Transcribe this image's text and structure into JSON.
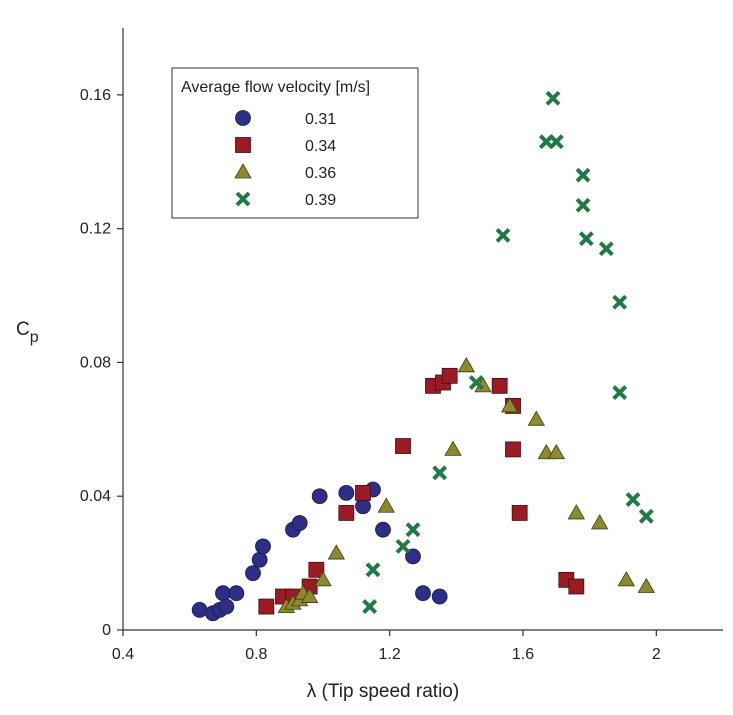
{
  "chart_data": {
    "type": "scatter",
    "title": "",
    "xlabel": "λ (Tip speed ratio)",
    "ylabel_main": "C",
    "ylabel_sub": "p",
    "xlim": [
      0.4,
      2.2
    ],
    "ylim": [
      0,
      0.18
    ],
    "x_ticks": [
      0.4,
      0.8,
      1.2,
      1.6,
      2.0
    ],
    "x_tick_labels": [
      "0.4",
      "0.8",
      "1.2",
      "1.6",
      "2"
    ],
    "y_ticks": [
      0,
      0.04,
      0.08,
      0.12,
      0.16
    ],
    "y_tick_labels": [
      "0",
      "0.04",
      "0.08",
      "0.12",
      "0.16"
    ],
    "grid": false,
    "legend": {
      "title": "Average flow velocity [m/s]",
      "placement": "top-left"
    },
    "series": [
      {
        "name": "0.31",
        "marker": "circle",
        "color": "#2d2f86",
        "points": [
          [
            0.63,
            0.006
          ],
          [
            0.67,
            0.005
          ],
          [
            0.69,
            0.006
          ],
          [
            0.7,
            0.011
          ],
          [
            0.71,
            0.007
          ],
          [
            0.74,
            0.011
          ],
          [
            0.79,
            0.017
          ],
          [
            0.81,
            0.021
          ],
          [
            0.82,
            0.025
          ],
          [
            0.91,
            0.03
          ],
          [
            0.93,
            0.032
          ],
          [
            0.99,
            0.04
          ],
          [
            1.07,
            0.041
          ],
          [
            1.12,
            0.037
          ],
          [
            1.15,
            0.042
          ],
          [
            1.18,
            0.03
          ],
          [
            1.27,
            0.022
          ],
          [
            1.3,
            0.011
          ],
          [
            1.35,
            0.01
          ]
        ]
      },
      {
        "name": "0.34",
        "marker": "square",
        "color": "#9b1b24",
        "points": [
          [
            0.83,
            0.007
          ],
          [
            0.88,
            0.01
          ],
          [
            0.91,
            0.01
          ],
          [
            0.96,
            0.013
          ],
          [
            0.98,
            0.018
          ],
          [
            1.07,
            0.035
          ],
          [
            1.12,
            0.041
          ],
          [
            1.24,
            0.055
          ],
          [
            1.33,
            0.073
          ],
          [
            1.36,
            0.074
          ],
          [
            1.38,
            0.076
          ],
          [
            1.53,
            0.073
          ],
          [
            1.57,
            0.067
          ],
          [
            1.57,
            0.054
          ],
          [
            1.59,
            0.035
          ],
          [
            1.73,
            0.015
          ],
          [
            1.76,
            0.013
          ]
        ]
      },
      {
        "name": "0.36",
        "marker": "triangle",
        "color": "#8b8a2e",
        "points": [
          [
            0.89,
            0.007
          ],
          [
            0.91,
            0.008
          ],
          [
            0.93,
            0.009
          ],
          [
            0.94,
            0.011
          ],
          [
            0.96,
            0.01
          ],
          [
            1.0,
            0.015
          ],
          [
            1.04,
            0.023
          ],
          [
            1.19,
            0.037
          ],
          [
            1.39,
            0.054
          ],
          [
            1.43,
            0.079
          ],
          [
            1.48,
            0.073
          ],
          [
            1.56,
            0.067
          ],
          [
            1.64,
            0.063
          ],
          [
            1.67,
            0.053
          ],
          [
            1.7,
            0.053
          ],
          [
            1.76,
            0.035
          ],
          [
            1.83,
            0.032
          ],
          [
            1.91,
            0.015
          ],
          [
            1.97,
            0.013
          ]
        ]
      },
      {
        "name": "0.39",
        "marker": "x",
        "color": "#1f7a45",
        "points": [
          [
            1.14,
            0.007
          ],
          [
            1.15,
            0.018
          ],
          [
            1.24,
            0.025
          ],
          [
            1.27,
            0.03
          ],
          [
            1.35,
            0.047
          ],
          [
            1.46,
            0.074
          ],
          [
            1.54,
            0.118
          ],
          [
            1.67,
            0.146
          ],
          [
            1.69,
            0.159
          ],
          [
            1.7,
            0.146
          ],
          [
            1.78,
            0.136
          ],
          [
            1.78,
            0.127
          ],
          [
            1.79,
            0.117
          ],
          [
            1.85,
            0.114
          ],
          [
            1.89,
            0.098
          ],
          [
            1.89,
            0.071
          ],
          [
            1.93,
            0.039
          ],
          [
            1.97,
            0.034
          ]
        ]
      }
    ]
  }
}
